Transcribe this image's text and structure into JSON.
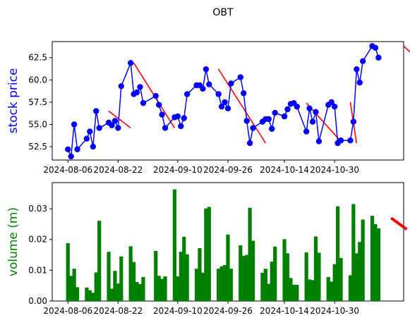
{
  "chart_data": [
    {
      "type": "line",
      "title": "OBT",
      "ylabel": "stock price",
      "ylabel_color": "#0000ff",
      "line_color": "#0000ff",
      "marker_color": "#0000ff",
      "trend_color": "#ff0000",
      "grid": false,
      "xlim": [
        "2024-08-01",
        "2024-11-21"
      ],
      "ylim": [
        51.0,
        64.3
      ],
      "yticks": [
        52.5,
        55.0,
        57.5,
        60.0,
        62.5
      ],
      "ytick_labels": [
        "52.5",
        "55.0",
        "57.5",
        "60.0",
        "62.5"
      ],
      "xticks": [
        "2024-08-06",
        "2024-08-22",
        "2024-09-10",
        "2024-09-26",
        "2024-10-14",
        "2024-10-30"
      ],
      "x": [
        "2024-08-06",
        "2024-08-07",
        "2024-08-08",
        "2024-08-09",
        "2024-08-12",
        "2024-08-13",
        "2024-08-14",
        "2024-08-15",
        "2024-08-16",
        "2024-08-19",
        "2024-08-20",
        "2024-08-21",
        "2024-08-22",
        "2024-08-23",
        "2024-08-26",
        "2024-08-27",
        "2024-08-28",
        "2024-08-29",
        "2024-08-30",
        "2024-09-03",
        "2024-09-04",
        "2024-09-05",
        "2024-09-06",
        "2024-09-09",
        "2024-09-10",
        "2024-09-11",
        "2024-09-12",
        "2024-09-13",
        "2024-09-16",
        "2024-09-17",
        "2024-09-18",
        "2024-09-19",
        "2024-09-20",
        "2024-09-23",
        "2024-09-24",
        "2024-09-25",
        "2024-09-26",
        "2024-09-27",
        "2024-09-30",
        "2024-10-01",
        "2024-10-02",
        "2024-10-03",
        "2024-10-04",
        "2024-10-07",
        "2024-10-08",
        "2024-10-09",
        "2024-10-10",
        "2024-10-11",
        "2024-10-14",
        "2024-10-15",
        "2024-10-16",
        "2024-10-17",
        "2024-10-18",
        "2024-10-21",
        "2024-10-22",
        "2024-10-23",
        "2024-10-24",
        "2024-10-25",
        "2024-10-28",
        "2024-10-29",
        "2024-10-30",
        "2024-10-31",
        "2024-11-01",
        "2024-11-04",
        "2024-11-05",
        "2024-11-06",
        "2024-11-07",
        "2024-11-08",
        "2024-11-11",
        "2024-11-12",
        "2024-11-13"
      ],
      "values": [
        52.2,
        51.4,
        55.0,
        52.2,
        53.4,
        54.2,
        52.5,
        56.5,
        54.6,
        55.2,
        54.9,
        55.4,
        54.6,
        59.3,
        61.9,
        58.4,
        58.6,
        59.2,
        57.4,
        58.2,
        57.2,
        56.1,
        54.6,
        55.8,
        55.9,
        54.8,
        55.7,
        58.4,
        59.4,
        59.4,
        59.0,
        61.2,
        59.5,
        58.4,
        57.0,
        57.5,
        56.8,
        59.6,
        60.3,
        58.5,
        55.4,
        52.9,
        54.6,
        55.3,
        55.6,
        55.6,
        54.5,
        56.3,
        55.9,
        56.7,
        57.3,
        57.4,
        57.0,
        54.2,
        56.8,
        55.3,
        56.4,
        53.1,
        57.2,
        57.5,
        57.0,
        52.9,
        53.2,
        53.2,
        55.3,
        61.2,
        59.7,
        62.1,
        63.8,
        63.6,
        62.5
      ],
      "trend_segments": [
        {
          "x": [
            "2024-08-19",
            "2024-08-26"
          ],
          "y": [
            56.5,
            54.6
          ]
        },
        {
          "x": [
            "2024-08-27",
            "2024-09-09"
          ],
          "y": [
            61.9,
            54.6
          ]
        },
        {
          "x": [
            "2024-09-23",
            "2024-10-08"
          ],
          "y": [
            61.2,
            52.9
          ]
        },
        {
          "x": [
            "2024-10-21",
            "2024-11-01"
          ],
          "y": [
            57.4,
            53.1
          ]
        },
        {
          "x": [
            "2024-11-04",
            "2024-11-06"
          ],
          "y": [
            57.5,
            52.9
          ]
        },
        {
          "x": [
            "2024-11-21",
            "2024-11-25"
          ],
          "y": [
            63.8,
            62.5
          ]
        }
      ]
    },
    {
      "type": "bar",
      "ylabel": "volume (m)",
      "ylabel_color": "#008000",
      "bar_color": "#008000",
      "trend_color": "#ff0000",
      "grid": false,
      "xlim": [
        "2024-08-01",
        "2024-11-21"
      ],
      "ylim": [
        0,
        0.0385
      ],
      "yticks": [
        0,
        0.01,
        0.02,
        0.03
      ],
      "ytick_labels": [
        "0.00",
        "0.01",
        "0.02",
        "0.03"
      ],
      "xticks": [
        "2024-08-06",
        "2024-08-22",
        "2024-09-10",
        "2024-09-26",
        "2024-10-14",
        "2024-10-30"
      ],
      "values": [
        0.0188,
        0.0082,
        0.0105,
        0.0045,
        0.0044,
        0.0035,
        0.0027,
        0.0093,
        0.0261,
        0.016,
        0.004,
        0.0098,
        0.0057,
        0.0145,
        0.0178,
        0.0127,
        0.0062,
        0.0055,
        0.0078,
        0.0163,
        0.0082,
        0.0072,
        0.008,
        0.0363,
        0.008,
        0.016,
        0.0209,
        0.0152,
        0.0105,
        0.0172,
        0.0092,
        0.0301,
        0.0306,
        0.0105,
        0.0113,
        0.0117,
        0.0216,
        0.0105,
        0.0181,
        0.0147,
        0.015,
        0.0303,
        0.0196,
        0.0092,
        0.0105,
        0.0056,
        0.0128,
        0.0177,
        0.0201,
        0.0155,
        0.0075,
        0.0053,
        0.0053,
        0.0158,
        0.007,
        0.0068,
        0.021,
        0.0157,
        0.0078,
        0.0063,
        0.012,
        0.0308,
        0.014,
        0.0084,
        0.0315,
        0.0155,
        0.0192,
        0.0265,
        0.0277,
        0.025,
        0.0236
      ],
      "trend_segments": [
        {
          "x": [
            "2024-11-17",
            "2024-11-22"
          ],
          "y": [
            0.027,
            0.0233
          ]
        }
      ]
    }
  ]
}
